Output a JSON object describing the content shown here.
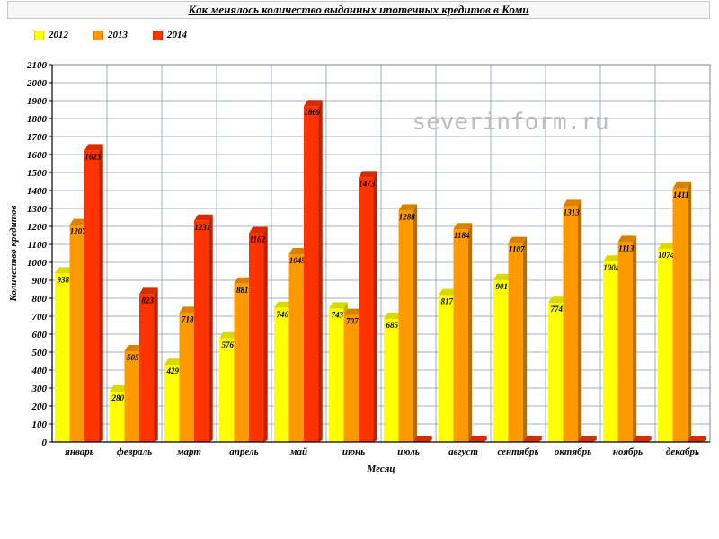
{
  "title": "Как менялось количество выданных ипотечных кредитов в Коми",
  "watermark": "severinform.ru",
  "chart_data": {
    "type": "bar",
    "title": "Как менялось количество выданных ипотечных кредитов в Коми",
    "xlabel": "Месяц",
    "ylabel": "Количество кредитов",
    "ylim": [
      0,
      2100
    ],
    "ytick_step": 100,
    "grid": true,
    "legend_position": "top-left",
    "categories": [
      "январь",
      "февраль",
      "март",
      "апрель",
      "май",
      "июнь",
      "июль",
      "август",
      "сентябрь",
      "октябрь",
      "ноябрь",
      "декабрь"
    ],
    "series": [
      {
        "name": "2012",
        "color": "#ffff00",
        "values": [
          938,
          280,
          429,
          576,
          746,
          743,
          685,
          817,
          901,
          774,
          1004,
          1074
        ]
      },
      {
        "name": "2013",
        "color": "#ff9900",
        "values": [
          1207,
          505,
          718,
          881,
          1045,
          707,
          1288,
          1184,
          1107,
          1313,
          1113,
          1411
        ]
      },
      {
        "name": "2014",
        "color": "#ff3300",
        "values": [
          1623,
          823,
          1231,
          1162,
          1869,
          1473,
          0,
          0,
          0,
          0,
          0,
          0
        ]
      }
    ]
  }
}
